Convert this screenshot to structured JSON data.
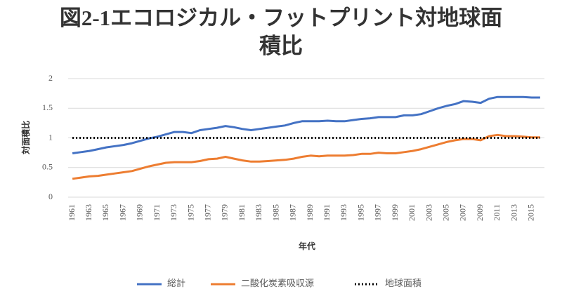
{
  "chart_data": {
    "type": "line",
    "title": "図2-1エコロジカル・フットプリント対地球面積比",
    "x_label": "年代",
    "y_label": "対面積比",
    "categories": [
      "1961",
      null,
      "1963",
      null,
      "1965",
      null,
      "1967",
      null,
      "1969",
      null,
      "1971",
      null,
      "1973",
      null,
      "1975",
      null,
      "1977",
      null,
      "1979",
      null,
      "1981",
      null,
      "1983",
      null,
      "1985",
      null,
      "1987",
      null,
      "1989",
      null,
      "1991",
      null,
      "1993",
      null,
      "1995",
      null,
      "1997",
      null,
      "1999",
      null,
      "2001",
      null,
      "2003",
      null,
      "2005",
      null,
      "2007",
      null,
      "2009",
      null,
      "2011",
      null,
      "2013",
      null,
      "2015",
      null
    ],
    "series": [
      {
        "name": "総計",
        "color": "#4472c4",
        "values": [
          0.74,
          0.76,
          0.78,
          0.81,
          0.84,
          0.86,
          0.88,
          0.91,
          0.95,
          0.99,
          1.02,
          1.06,
          1.1,
          1.1,
          1.08,
          1.13,
          1.15,
          1.17,
          1.2,
          1.18,
          1.15,
          1.13,
          1.15,
          1.17,
          1.19,
          1.21,
          1.25,
          1.28,
          1.28,
          1.28,
          1.29,
          1.28,
          1.28,
          1.3,
          1.32,
          1.33,
          1.35,
          1.35,
          1.35,
          1.38,
          1.38,
          1.4,
          1.45,
          1.5,
          1.54,
          1.57,
          1.62,
          1.61,
          1.59,
          1.66,
          1.69,
          1.69,
          1.69,
          1.69,
          1.68,
          1.68
        ]
      },
      {
        "name": "二酸化炭素吸収源",
        "color": "#ed7d31",
        "values": [
          0.31,
          0.33,
          0.35,
          0.36,
          0.38,
          0.4,
          0.42,
          0.44,
          0.48,
          0.52,
          0.55,
          0.58,
          0.59,
          0.59,
          0.59,
          0.61,
          0.64,
          0.65,
          0.68,
          0.65,
          0.62,
          0.6,
          0.6,
          0.61,
          0.62,
          0.63,
          0.65,
          0.68,
          0.7,
          0.69,
          0.7,
          0.7,
          0.7,
          0.71,
          0.73,
          0.73,
          0.75,
          0.74,
          0.74,
          0.76,
          0.78,
          0.81,
          0.85,
          0.89,
          0.93,
          0.96,
          0.98,
          0.98,
          0.96,
          1.03,
          1.05,
          1.03,
          1.03,
          1.02,
          1.01,
          1.01
        ]
      },
      {
        "name": "地球面積",
        "color": "#000000",
        "line_style": "dotted",
        "values": [
          1,
          1,
          1,
          1,
          1,
          1,
          1,
          1,
          1,
          1,
          1,
          1,
          1,
          1,
          1,
          1,
          1,
          1,
          1,
          1,
          1,
          1,
          1,
          1,
          1,
          1,
          1,
          1,
          1,
          1,
          1,
          1,
          1,
          1,
          1,
          1,
          1,
          1,
          1,
          1,
          1,
          1,
          1,
          1,
          1,
          1,
          1,
          1,
          1,
          1,
          1,
          1,
          1,
          1,
          1,
          1
        ]
      }
    ],
    "ylim": [
      0,
      2
    ],
    "yticks": [
      0,
      0.5,
      1,
      1.5,
      2
    ],
    "grid": true,
    "legend": "bottom"
  }
}
